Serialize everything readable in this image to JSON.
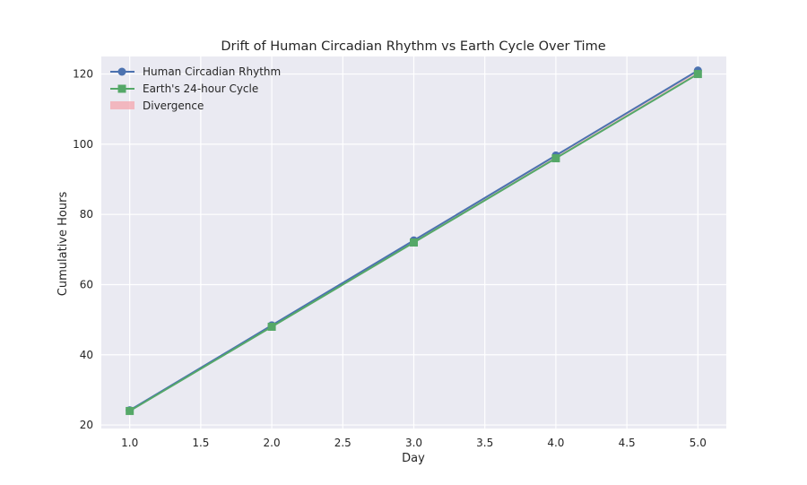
{
  "chart_data": {
    "type": "line",
    "title": "Drift of Human Circadian Rhythm vs Earth Cycle Over Time",
    "xlabel": "Day",
    "ylabel": "Cumulative Hours",
    "x": [
      1,
      2,
      3,
      4,
      5
    ],
    "xlim": [
      0.8,
      5.2
    ],
    "ylim": [
      19,
      125
    ],
    "xticks": [
      1.0,
      1.5,
      2.0,
      2.5,
      3.0,
      3.5,
      4.0,
      4.5,
      5.0
    ],
    "xtick_labels": [
      "1.0",
      "1.5",
      "2.0",
      "2.5",
      "3.0",
      "3.5",
      "4.0",
      "4.5",
      "5.0"
    ],
    "yticks": [
      20,
      40,
      60,
      80,
      100,
      120
    ],
    "ytick_labels": [
      "20",
      "40",
      "60",
      "80",
      "100",
      "120"
    ],
    "grid": true,
    "legend_position": "upper-left",
    "series": [
      {
        "name": "Human Circadian Rhythm",
        "marker": "circle",
        "color": "#4c72b0",
        "values": [
          24.2,
          48.4,
          72.6,
          96.8,
          121.0
        ]
      },
      {
        "name": "Earth's 24-hour Cycle",
        "marker": "square",
        "color": "#55a868",
        "values": [
          24,
          48,
          72,
          96,
          120
        ]
      }
    ],
    "fill_between": {
      "name": "Divergence",
      "color": "#f4a6ad"
    },
    "background_color": "#eaeaf2"
  }
}
